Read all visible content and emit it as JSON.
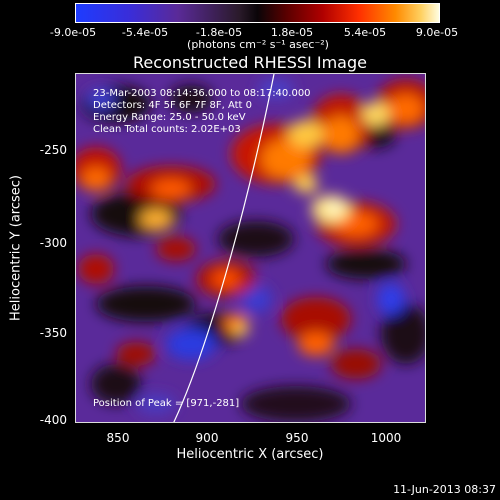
{
  "colorbar": {
    "ticks": [
      "-9.0e-05",
      "-5.4e-05",
      "-1.8e-05",
      "1.8e-05",
      "5.4e-05",
      "9.0e-05"
    ],
    "unit": "(photons cm⁻² s⁻¹ asec⁻²)"
  },
  "title": "Reconstructed RHESSI Image",
  "annotations": {
    "time": "23-Mar-2003 08:14:36.000 to 08:17:40.000",
    "detectors": "Detectors: 4F 5F 6F 7F 8F, Att 0",
    "energy": "Energy Range: 25.0 - 50.0 keV",
    "algorithm": "Clean     Total counts: 2.02E+03",
    "peak": "Position of Peak = [971,-281]"
  },
  "axes": {
    "xlabel": "Heliocentric X (arcsec)",
    "ylabel": "Heliocentric Y (arcsec)",
    "xticks": [
      "850",
      "900",
      "950",
      "1000"
    ],
    "yticks": [
      "-250",
      "-300",
      "-350",
      "-400"
    ]
  },
  "timestamp": "11-Jun-2013 08:37"
}
